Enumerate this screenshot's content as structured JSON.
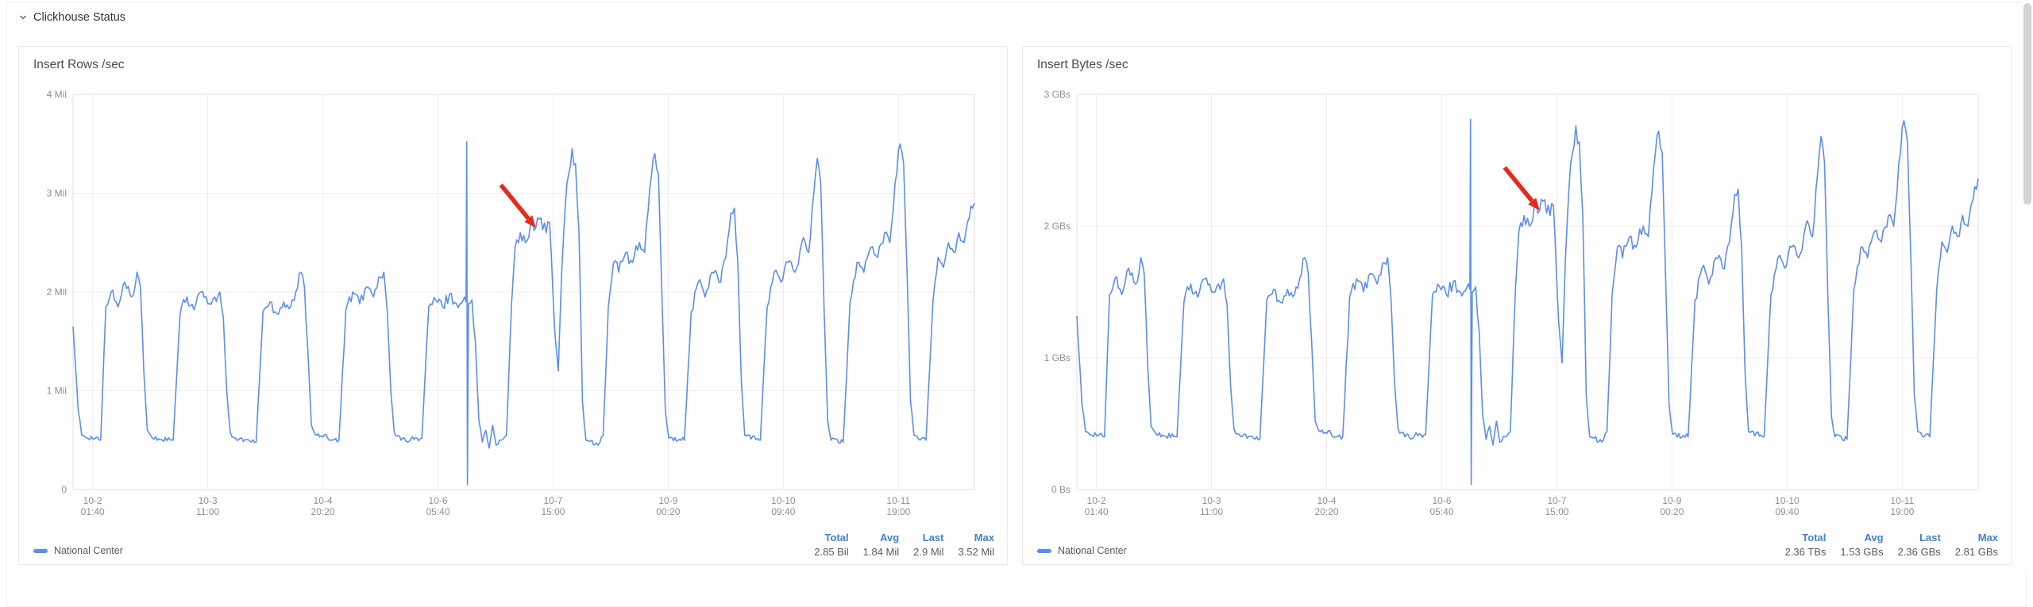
{
  "section": {
    "title": "Clickhouse Status"
  },
  "colors": {
    "series": "#5b8cf5",
    "accent": "#3f7fdb",
    "arrow": "#e8291c",
    "grid": "#ededed",
    "axis_text": "#8a8f99",
    "border": "#e2e2e2"
  },
  "chart_data": [
    {
      "type": "line",
      "title": "Insert Rows /sec",
      "legend": "National Center",
      "ylim": [
        0,
        4
      ],
      "t_range": [
        0,
        261
      ],
      "yticks": [
        {
          "v": 4,
          "label": "4 Mil"
        },
        {
          "v": 3,
          "label": "3 Mil"
        },
        {
          "v": 2,
          "label": "2 Mil"
        },
        {
          "v": 1,
          "label": "1 Mil"
        },
        {
          "v": 0,
          "label": "0"
        }
      ],
      "xticks": [
        {
          "t": 5.67,
          "label": [
            "10-2",
            "01:40"
          ]
        },
        {
          "t": 39,
          "label": [
            "10-3",
            "11:00"
          ]
        },
        {
          "t": 72.33,
          "label": [
            "10-4",
            "20:20"
          ]
        },
        {
          "t": 105.67,
          "label": [
            "10-6",
            "05:40"
          ]
        },
        {
          "t": 139,
          "label": [
            "10-7",
            "15:00"
          ]
        },
        {
          "t": 172.33,
          "label": [
            "10-9",
            "00:20"
          ]
        },
        {
          "t": 205.67,
          "label": [
            "10-10",
            "09:40"
          ]
        },
        {
          "t": 239,
          "label": [
            "10-11",
            "19:00"
          ]
        }
      ],
      "stats": [
        {
          "label": "Total",
          "value": "2.85 Bil"
        },
        {
          "label": "Avg",
          "value": "1.84 Mil"
        },
        {
          "label": "Last",
          "value": "2.9 Mil"
        },
        {
          "label": "Max",
          "value": "3.52 Mil"
        }
      ],
      "annotation_arrow": {
        "t": 134,
        "v": 2.65
      },
      "points": [
        [
          0,
          1.65
        ],
        [
          1.5,
          0.8
        ],
        [
          2.5,
          0.55
        ],
        [
          8,
          0.5
        ],
        [
          9.5,
          1.85
        ],
        [
          11,
          2.0
        ],
        [
          13,
          1.85
        ],
        [
          15,
          2.1
        ],
        [
          17,
          1.95
        ],
        [
          18.5,
          2.2
        ],
        [
          19.5,
          2.05
        ],
        [
          20.5,
          1.2
        ],
        [
          21.5,
          0.6
        ],
        [
          23,
          0.52
        ],
        [
          29,
          0.5
        ],
        [
          31,
          1.78
        ],
        [
          33,
          1.95
        ],
        [
          35,
          1.82
        ],
        [
          37,
          2.0
        ],
        [
          39,
          1.88
        ],
        [
          41,
          1.95
        ],
        [
          42.5,
          2.0
        ],
        [
          43.5,
          1.75
        ],
        [
          44.5,
          1.0
        ],
        [
          45.5,
          0.58
        ],
        [
          47,
          0.52
        ],
        [
          53,
          0.48
        ],
        [
          55,
          1.8
        ],
        [
          57,
          1.9
        ],
        [
          59,
          1.78
        ],
        [
          61,
          1.9
        ],
        [
          63,
          1.85
        ],
        [
          64.5,
          2.0
        ],
        [
          66,
          2.2
        ],
        [
          67,
          2.05
        ],
        [
          68,
          1.4
        ],
        [
          69,
          0.65
        ],
        [
          70.5,
          0.55
        ],
        [
          77,
          0.5
        ],
        [
          79,
          1.82
        ],
        [
          81,
          2.0
        ],
        [
          83,
          1.88
        ],
        [
          85,
          2.05
        ],
        [
          87,
          1.95
        ],
        [
          88.5,
          2.15
        ],
        [
          90,
          2.2
        ],
        [
          91,
          1.8
        ],
        [
          92,
          1.0
        ],
        [
          93,
          0.58
        ],
        [
          95,
          0.5
        ],
        [
          101,
          0.52
        ],
        [
          103,
          1.85
        ],
        [
          105,
          1.92
        ],
        [
          107,
          1.85
        ],
        [
          109,
          1.98
        ],
        [
          111,
          1.88
        ],
        [
          113,
          1.92
        ],
        [
          113.8,
          1.9
        ],
        [
          114,
          3.52
        ],
        [
          114.2,
          0.05
        ],
        [
          114.5,
          1.88
        ],
        [
          115.5,
          1.92
        ],
        [
          116.5,
          1.5
        ],
        [
          117.5,
          0.7
        ],
        [
          118.5,
          0.48
        ],
        [
          119.5,
          0.6
        ],
        [
          120.5,
          0.42
        ],
        [
          121.5,
          0.65
        ],
        [
          122.5,
          0.45
        ],
        [
          124,
          0.5
        ],
        [
          125.5,
          0.55
        ],
        [
          127,
          1.9
        ],
        [
          128,
          2.45
        ],
        [
          129.5,
          2.6
        ],
        [
          131,
          2.5
        ],
        [
          132.5,
          2.7
        ],
        [
          134,
          2.65
        ],
        [
          135.5,
          2.75
        ],
        [
          137,
          2.6
        ],
        [
          138,
          2.7
        ],
        [
          139.5,
          1.6
        ],
        [
          140.5,
          1.2
        ],
        [
          141.5,
          2.2
        ],
        [
          143,
          3.1
        ],
        [
          144.5,
          3.45
        ],
        [
          145.5,
          3.3
        ],
        [
          146.5,
          2.6
        ],
        [
          147.5,
          0.9
        ],
        [
          148.5,
          0.5
        ],
        [
          152,
          0.45
        ],
        [
          153.5,
          0.55
        ],
        [
          155,
          1.85
        ],
        [
          156.5,
          2.3
        ],
        [
          158,
          2.2
        ],
        [
          160,
          2.4
        ],
        [
          162,
          2.3
        ],
        [
          164,
          2.5
        ],
        [
          165.5,
          2.4
        ],
        [
          167,
          3.05
        ],
        [
          168.5,
          3.4
        ],
        [
          169.5,
          3.2
        ],
        [
          170.5,
          2.0
        ],
        [
          171.5,
          0.8
        ],
        [
          172.5,
          0.52
        ],
        [
          177,
          0.5
        ],
        [
          179,
          1.8
        ],
        [
          181,
          2.1
        ],
        [
          183,
          1.95
        ],
        [
          185,
          2.2
        ],
        [
          187,
          2.1
        ],
        [
          189,
          2.35
        ],
        [
          190.5,
          2.8
        ],
        [
          191.5,
          2.85
        ],
        [
          192.5,
          2.3
        ],
        [
          193.5,
          1.1
        ],
        [
          194.5,
          0.55
        ],
        [
          199,
          0.5
        ],
        [
          201,
          1.85
        ],
        [
          203,
          2.2
        ],
        [
          205,
          2.1
        ],
        [
          207,
          2.3
        ],
        [
          209,
          2.2
        ],
        [
          211,
          2.5
        ],
        [
          213,
          2.4
        ],
        [
          214.5,
          3.0
        ],
        [
          215.5,
          3.35
        ],
        [
          216.5,
          3.1
        ],
        [
          217.5,
          1.8
        ],
        [
          218.5,
          0.7
        ],
        [
          219.5,
          0.5
        ],
        [
          223,
          0.48
        ],
        [
          225,
          1.9
        ],
        [
          227,
          2.3
        ],
        [
          229,
          2.2
        ],
        [
          231,
          2.45
        ],
        [
          233,
          2.35
        ],
        [
          235,
          2.6
        ],
        [
          236.5,
          2.5
        ],
        [
          238,
          3.1
        ],
        [
          239.5,
          3.5
        ],
        [
          240.5,
          3.3
        ],
        [
          241.5,
          2.2
        ],
        [
          242.5,
          0.9
        ],
        [
          243.5,
          0.55
        ],
        [
          247,
          0.5
        ],
        [
          249,
          1.9
        ],
        [
          250.5,
          2.35
        ],
        [
          252,
          2.25
        ],
        [
          253.5,
          2.5
        ],
        [
          255,
          2.4
        ],
        [
          256.5,
          2.6
        ],
        [
          258,
          2.5
        ],
        [
          259.5,
          2.75
        ],
        [
          260.5,
          2.85
        ],
        [
          261,
          2.9
        ]
      ]
    },
    {
      "type": "line",
      "title": "Insert Bytes /sec",
      "legend": "National Center",
      "ylim": [
        0,
        3
      ],
      "t_range": [
        0,
        261
      ],
      "yticks": [
        {
          "v": 3,
          "label": "3 GBs"
        },
        {
          "v": 2,
          "label": "2 GBs"
        },
        {
          "v": 1,
          "label": "1 GBs"
        },
        {
          "v": 0,
          "label": "0 Bs"
        }
      ],
      "xticks": [
        {
          "t": 5.67,
          "label": [
            "10-2",
            "01:40"
          ]
        },
        {
          "t": 39,
          "label": [
            "10-3",
            "11:00"
          ]
        },
        {
          "t": 72.33,
          "label": [
            "10-4",
            "20:20"
          ]
        },
        {
          "t": 105.67,
          "label": [
            "10-6",
            "05:40"
          ]
        },
        {
          "t": 139,
          "label": [
            "10-7",
            "15:00"
          ]
        },
        {
          "t": 172.33,
          "label": [
            "10-9",
            "00:20"
          ]
        },
        {
          "t": 205.67,
          "label": [
            "10-10",
            "09:40"
          ]
        },
        {
          "t": 239,
          "label": [
            "10-11",
            "19:00"
          ]
        }
      ],
      "stats": [
        {
          "label": "Total",
          "value": "2.36 TBs"
        },
        {
          "label": "Avg",
          "value": "1.53 GBs"
        },
        {
          "label": "Last",
          "value": "2.36 GBs"
        },
        {
          "label": "Max",
          "value": "2.81 GBs"
        }
      ],
      "annotation_arrow": {
        "t": 134,
        "v": 2.12
      },
      "points": [
        [
          0,
          1.32
        ],
        [
          1.5,
          0.64
        ],
        [
          2.5,
          0.44
        ],
        [
          8,
          0.4
        ],
        [
          9.5,
          1.48
        ],
        [
          11,
          1.6
        ],
        [
          13,
          1.48
        ],
        [
          15,
          1.68
        ],
        [
          17,
          1.56
        ],
        [
          18.5,
          1.76
        ],
        [
          19.5,
          1.64
        ],
        [
          20.5,
          0.96
        ],
        [
          21.5,
          0.48
        ],
        [
          23,
          0.42
        ],
        [
          29,
          0.4
        ],
        [
          31,
          1.42
        ],
        [
          33,
          1.56
        ],
        [
          35,
          1.46
        ],
        [
          37,
          1.6
        ],
        [
          39,
          1.5
        ],
        [
          41,
          1.56
        ],
        [
          42.5,
          1.6
        ],
        [
          43.5,
          1.4
        ],
        [
          44.5,
          0.8
        ],
        [
          45.5,
          0.46
        ],
        [
          47,
          0.42
        ],
        [
          53,
          0.38
        ],
        [
          55,
          1.44
        ],
        [
          57,
          1.52
        ],
        [
          59,
          1.42
        ],
        [
          61,
          1.52
        ],
        [
          63,
          1.48
        ],
        [
          64.5,
          1.6
        ],
        [
          66,
          1.76
        ],
        [
          67,
          1.64
        ],
        [
          68,
          1.12
        ],
        [
          69,
          0.52
        ],
        [
          70.5,
          0.44
        ],
        [
          77,
          0.4
        ],
        [
          79,
          1.46
        ],
        [
          81,
          1.6
        ],
        [
          83,
          1.5
        ],
        [
          85,
          1.64
        ],
        [
          87,
          1.56
        ],
        [
          88.5,
          1.72
        ],
        [
          90,
          1.76
        ],
        [
          91,
          1.44
        ],
        [
          92,
          0.8
        ],
        [
          93,
          0.46
        ],
        [
          95,
          0.4
        ],
        [
          101,
          0.42
        ],
        [
          103,
          1.48
        ],
        [
          105,
          1.54
        ],
        [
          107,
          1.48
        ],
        [
          109,
          1.58
        ],
        [
          111,
          1.5
        ],
        [
          113,
          1.54
        ],
        [
          113.8,
          1.52
        ],
        [
          114,
          2.81
        ],
        [
          114.2,
          0.04
        ],
        [
          114.5,
          1.5
        ],
        [
          115.5,
          1.54
        ],
        [
          116.5,
          1.2
        ],
        [
          117.5,
          0.56
        ],
        [
          118.5,
          0.38
        ],
        [
          119.5,
          0.48
        ],
        [
          120.5,
          0.34
        ],
        [
          121.5,
          0.52
        ],
        [
          122.5,
          0.36
        ],
        [
          124,
          0.4
        ],
        [
          125.5,
          0.44
        ],
        [
          127,
          1.52
        ],
        [
          128,
          1.96
        ],
        [
          129.5,
          2.08
        ],
        [
          131,
          2.0
        ],
        [
          132.5,
          2.16
        ],
        [
          134,
          2.12
        ],
        [
          135.5,
          2.2
        ],
        [
          137,
          2.08
        ],
        [
          138,
          2.16
        ],
        [
          139.5,
          1.28
        ],
        [
          140.5,
          0.96
        ],
        [
          141.5,
          1.76
        ],
        [
          143,
          2.48
        ],
        [
          144.5,
          2.76
        ],
        [
          145.5,
          2.64
        ],
        [
          146.5,
          2.08
        ],
        [
          147.5,
          0.72
        ],
        [
          148.5,
          0.4
        ],
        [
          152,
          0.36
        ],
        [
          153.5,
          0.44
        ],
        [
          155,
          1.48
        ],
        [
          156.5,
          1.84
        ],
        [
          158,
          1.76
        ],
        [
          160,
          1.92
        ],
        [
          162,
          1.84
        ],
        [
          164,
          2.0
        ],
        [
          165.5,
          1.92
        ],
        [
          167,
          2.44
        ],
        [
          168.5,
          2.72
        ],
        [
          169.5,
          2.56
        ],
        [
          170.5,
          1.6
        ],
        [
          171.5,
          0.64
        ],
        [
          172.5,
          0.42
        ],
        [
          177,
          0.4
        ],
        [
          179,
          1.44
        ],
        [
          181,
          1.68
        ],
        [
          183,
          1.56
        ],
        [
          185,
          1.76
        ],
        [
          187,
          1.68
        ],
        [
          189,
          1.88
        ],
        [
          190.5,
          2.24
        ],
        [
          191.5,
          2.28
        ],
        [
          192.5,
          1.84
        ],
        [
          193.5,
          0.88
        ],
        [
          194.5,
          0.44
        ],
        [
          199,
          0.4
        ],
        [
          201,
          1.48
        ],
        [
          203,
          1.76
        ],
        [
          205,
          1.68
        ],
        [
          207,
          1.84
        ],
        [
          209,
          1.76
        ],
        [
          211,
          2.0
        ],
        [
          213,
          1.92
        ],
        [
          214.5,
          2.4
        ],
        [
          215.5,
          2.68
        ],
        [
          216.5,
          2.48
        ],
        [
          217.5,
          1.44
        ],
        [
          218.5,
          0.56
        ],
        [
          219.5,
          0.4
        ],
        [
          223,
          0.38
        ],
        [
          225,
          1.52
        ],
        [
          227,
          1.84
        ],
        [
          229,
          1.76
        ],
        [
          231,
          1.96
        ],
        [
          233,
          1.88
        ],
        [
          235,
          2.08
        ],
        [
          236.5,
          2.0
        ],
        [
          238,
          2.48
        ],
        [
          239.5,
          2.8
        ],
        [
          240.5,
          2.64
        ],
        [
          241.5,
          1.76
        ],
        [
          242.5,
          0.72
        ],
        [
          243.5,
          0.44
        ],
        [
          247,
          0.4
        ],
        [
          249,
          1.52
        ],
        [
          250.5,
          1.88
        ],
        [
          252,
          1.8
        ],
        [
          253.5,
          2.0
        ],
        [
          255,
          1.92
        ],
        [
          256.5,
          2.08
        ],
        [
          258,
          2.0
        ],
        [
          259.5,
          2.2
        ],
        [
          260.5,
          2.28
        ],
        [
          261,
          2.36
        ]
      ]
    }
  ]
}
